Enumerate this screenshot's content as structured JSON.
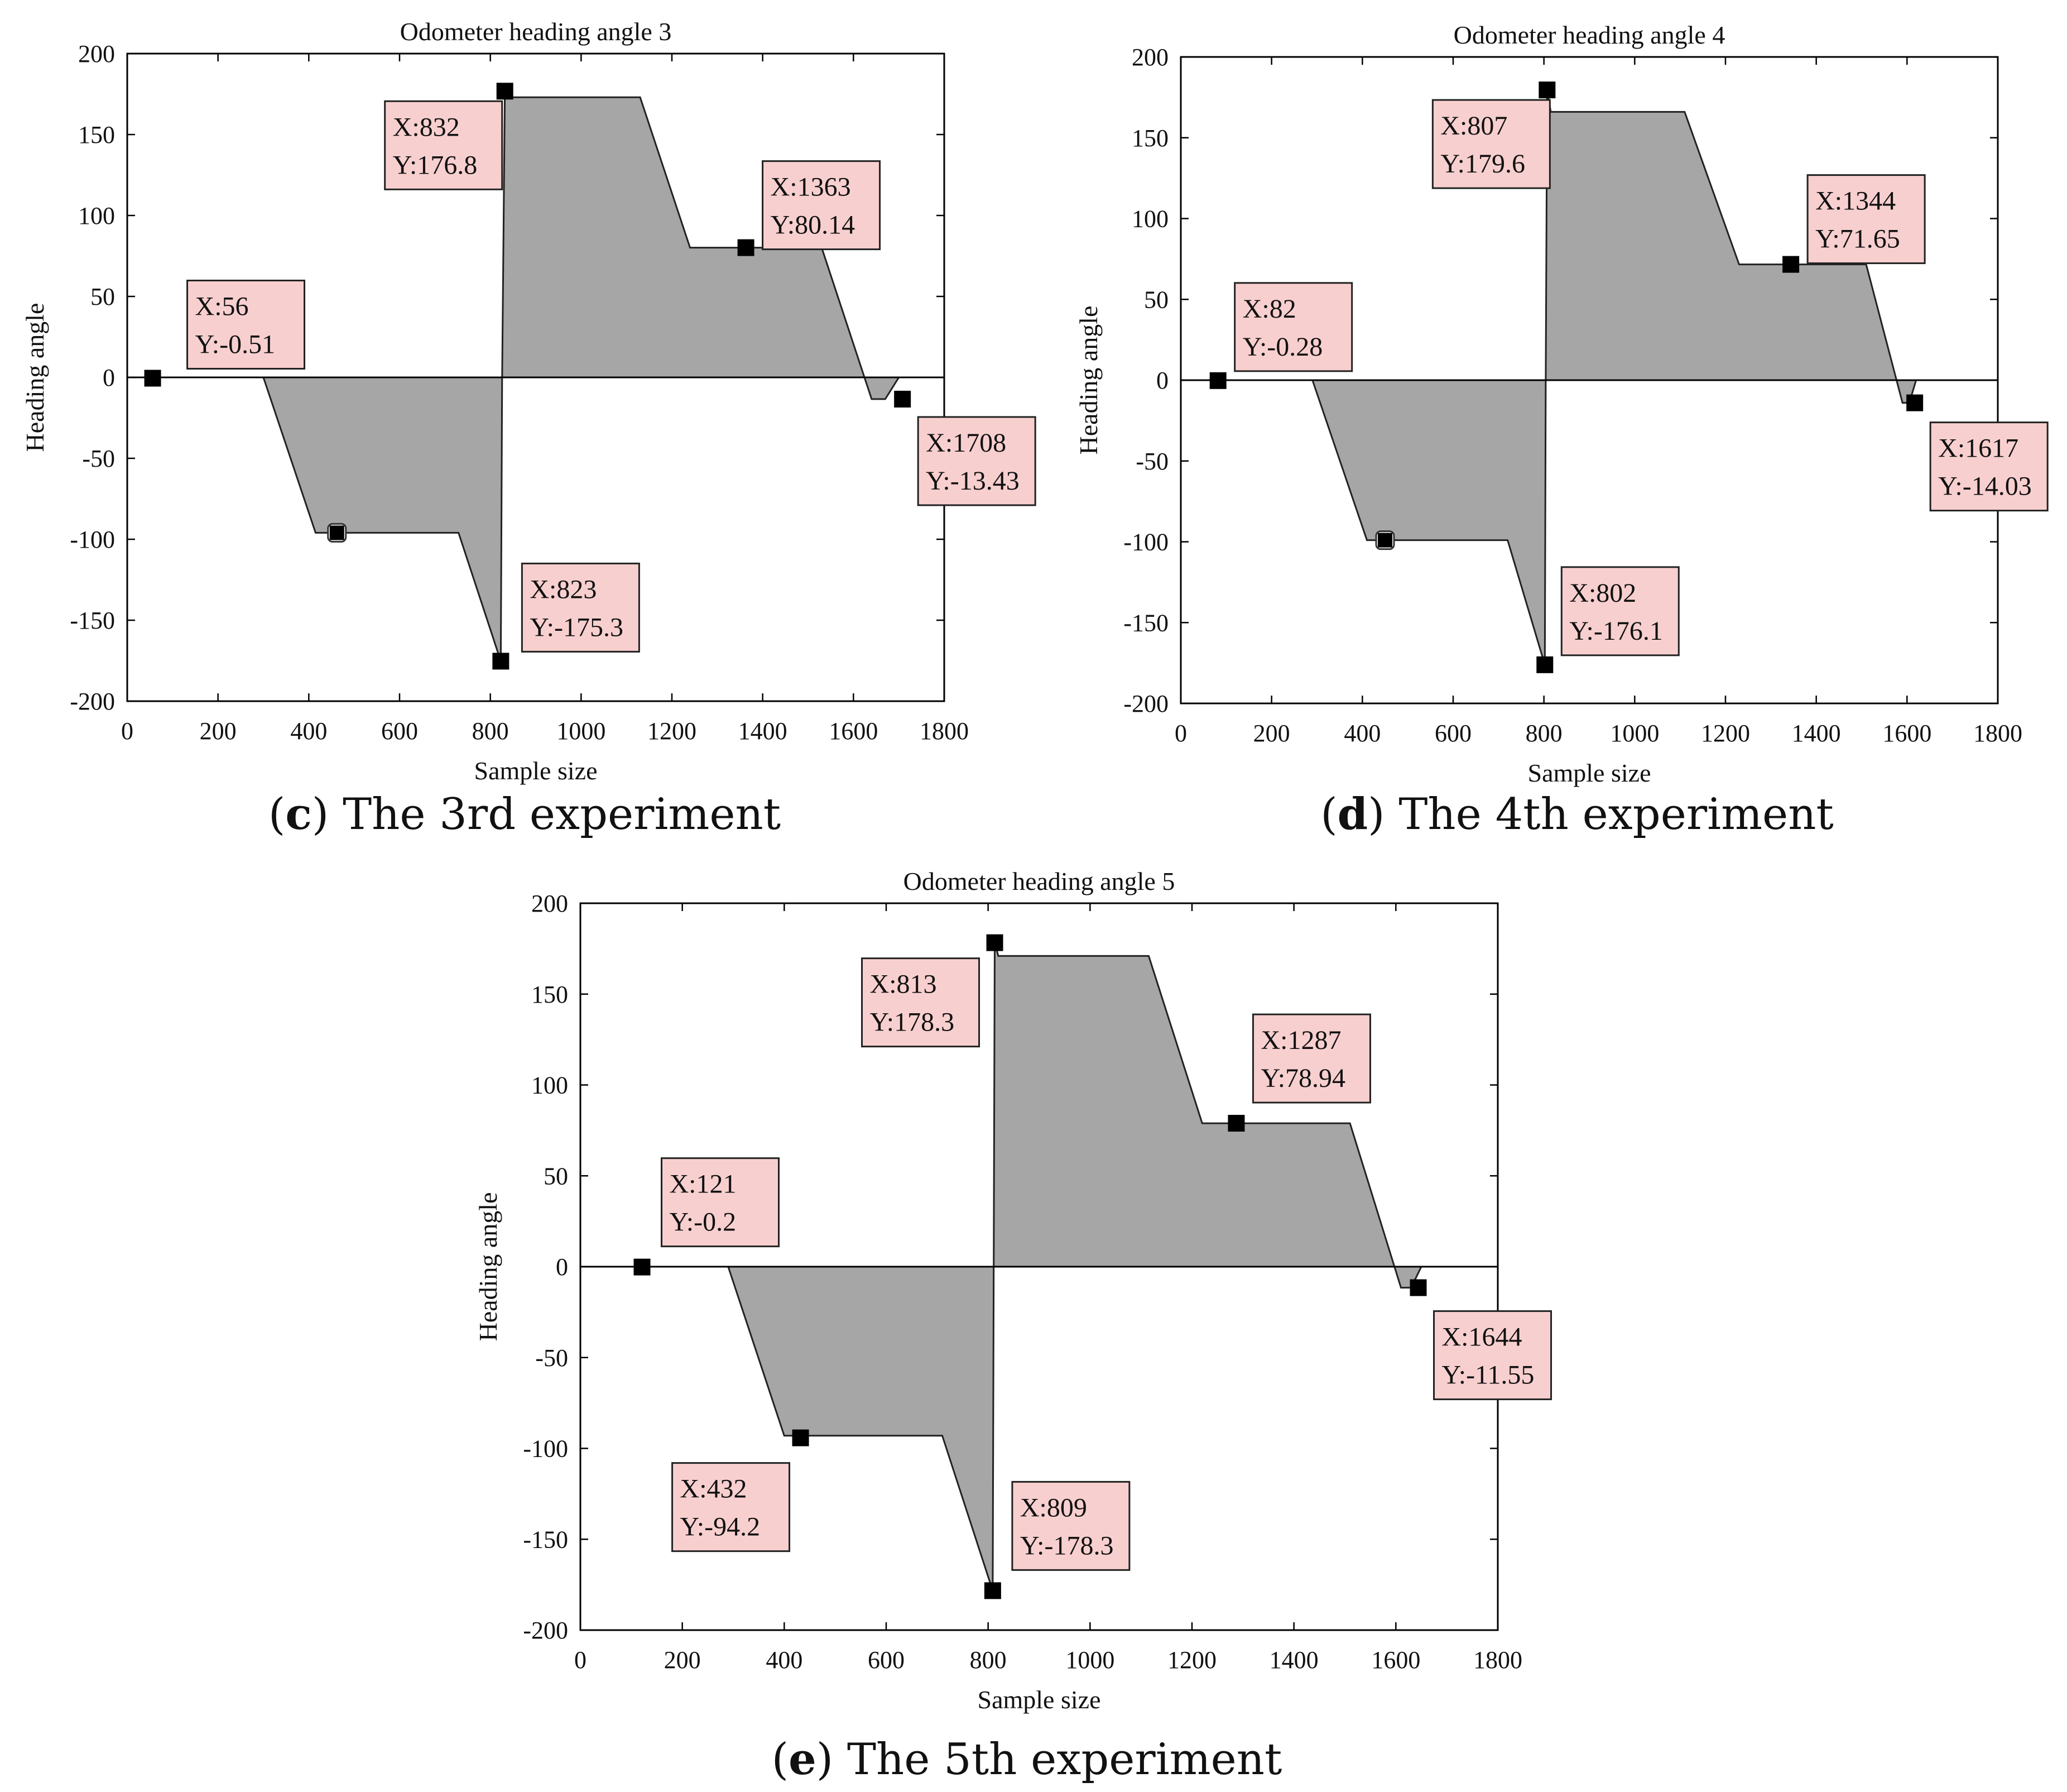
{
  "chart_data": [
    {
      "id": "c",
      "type": "area",
      "title": "Odometer heading angle 3",
      "xlabel": "Sample size",
      "ylabel": "Heading angle",
      "xlim": [
        0,
        1800
      ],
      "ylim": [
        -200,
        200
      ],
      "xticks": [
        0,
        200,
        400,
        600,
        800,
        1000,
        1200,
        1400,
        1600,
        1800
      ],
      "yticks": [
        200,
        150,
        100,
        50,
        0,
        -50,
        -100,
        -150,
        -200
      ],
      "grid": false,
      "fill_color": "#a6a6a6",
      "x": [
        0,
        300,
        415,
        730,
        823,
        826,
        832,
        840,
        1130,
        1240,
        1530,
        1640,
        1670,
        1700,
        1800
      ],
      "y": [
        0,
        0,
        -96,
        -96,
        -175.3,
        0,
        176.8,
        173,
        173,
        80.14,
        80.14,
        -13.43,
        -13.43,
        0,
        0
      ],
      "datatips": [
        {
          "x": 56,
          "y": -0.51,
          "label_x": "X:56",
          "label_y": "Y:-0.51"
        },
        {
          "x": 832,
          "y": 176.8,
          "label_x": "X:832",
          "label_y": "Y:176.8"
        },
        {
          "x": 1363,
          "y": 80.14,
          "label_x": "X:1363",
          "label_y": "Y:80.14"
        },
        {
          "x": 1708,
          "y": -13.43,
          "label_x": "X:1708",
          "label_y": "Y:-13.43"
        },
        {
          "x": 823,
          "y": -175.3,
          "label_x": "X:823",
          "label_y": "Y:-175.3"
        }
      ],
      "extra_markers": [
        {
          "x": 462,
          "y": -96
        }
      ],
      "caption_letter": "c",
      "caption_text": "The 3rd experiment"
    },
    {
      "id": "d",
      "type": "area",
      "title": "Odometer heading angle 4",
      "xlabel": "Sample size",
      "ylabel": "Heading angle",
      "xlim": [
        0,
        1800
      ],
      "ylim": [
        -200,
        200
      ],
      "xticks": [
        0,
        200,
        400,
        600,
        800,
        1000,
        1200,
        1400,
        1600,
        1800
      ],
      "yticks": [
        200,
        150,
        100,
        50,
        0,
        -50,
        -100,
        -150,
        -200
      ],
      "grid": false,
      "fill_color": "#a6a6a6",
      "x": [
        0,
        290,
        410,
        720,
        802,
        804,
        807,
        815,
        1110,
        1230,
        1510,
        1590,
        1605,
        1620,
        1800
      ],
      "y": [
        0,
        0,
        -99,
        -99,
        -176.1,
        0,
        179.6,
        166,
        166,
        71.65,
        71.65,
        -14.03,
        -14.03,
        0,
        0
      ],
      "datatips": [
        {
          "x": 82,
          "y": -0.28,
          "label_x": "X:82",
          "label_y": "Y:-0.28"
        },
        {
          "x": 807,
          "y": 179.6,
          "label_x": "X:807",
          "label_y": "Y:179.6"
        },
        {
          "x": 1344,
          "y": 71.65,
          "label_x": "X:1344",
          "label_y": "Y:71.65"
        },
        {
          "x": 1617,
          "y": -14.03,
          "label_x": "X:1617",
          "label_y": "Y:-14.03"
        },
        {
          "x": 802,
          "y": -176.1,
          "label_x": "X:802",
          "label_y": "Y:-176.1"
        }
      ],
      "extra_markers": [
        {
          "x": 450,
          "y": -99
        }
      ],
      "caption_letter": "d",
      "caption_text": "The 4th experiment"
    },
    {
      "id": "e",
      "type": "area",
      "title": "Odometer heading angle 5",
      "xlabel": "Sample size",
      "ylabel": "Heading angle",
      "xlim": [
        0,
        1800
      ],
      "ylim": [
        -200,
        200
      ],
      "xticks": [
        0,
        200,
        400,
        600,
        800,
        1000,
        1200,
        1400,
        1600,
        1800
      ],
      "yticks": [
        200,
        150,
        100,
        50,
        0,
        -50,
        -100,
        -150,
        -200
      ],
      "grid": false,
      "fill_color": "#a6a6a6",
      "x": [
        0,
        290,
        400,
        710,
        809,
        811,
        813,
        820,
        1115,
        1220,
        1510,
        1610,
        1630,
        1650,
        1800
      ],
      "y": [
        0,
        0,
        -93,
        -93,
        -178.3,
        0,
        178.3,
        171,
        171,
        78.94,
        78.94,
        -11.55,
        -11.55,
        0,
        0
      ],
      "datatips": [
        {
          "x": 121,
          "y": -0.2,
          "label_x": "X:121",
          "label_y": "Y:-0.2"
        },
        {
          "x": 813,
          "y": 178.3,
          "label_x": "X:813",
          "label_y": "Y:178.3"
        },
        {
          "x": 1287,
          "y": 78.94,
          "label_x": "X:1287",
          "label_y": "Y:78.94"
        },
        {
          "x": 1644,
          "y": -11.55,
          "label_x": "X:1644",
          "label_y": "Y:-11.55"
        },
        {
          "x": 432,
          "y": -94.2,
          "label_x": "X:432",
          "label_y": "Y:-94.2"
        },
        {
          "x": 809,
          "y": -178.3,
          "label_x": "X:809",
          "label_y": "Y:-178.3"
        }
      ],
      "extra_markers": [],
      "caption_letter": "e",
      "caption_text": "The 5th experiment"
    }
  ]
}
